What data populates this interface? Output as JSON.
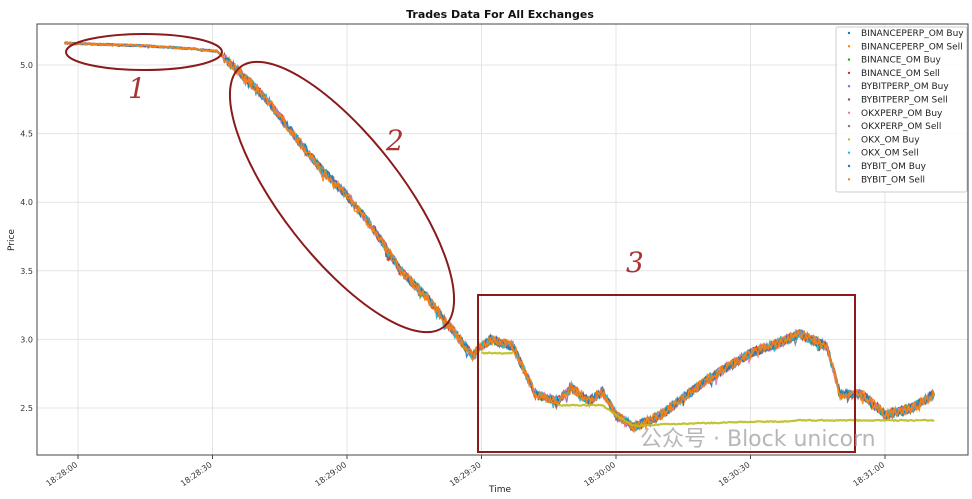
{
  "chart_data": {
    "type": "line",
    "title": "Trades Data For All Exchanges",
    "xlabel": "Time",
    "ylabel": "Price",
    "xlim": [
      "18:27:51",
      "18:31:18"
    ],
    "ylim": [
      2.16,
      5.31
    ],
    "grid": true,
    "legend_position": "top-right",
    "x_ticks": [
      "18:28:00",
      "18:28:30",
      "18:29:00",
      "18:29:30",
      "18:30:00",
      "18:30:30",
      "18:31:00"
    ],
    "y_ticks": [
      "2.5",
      "3.0",
      "3.5",
      "4.0",
      "4.5",
      "5.0"
    ],
    "x": [
      "18:27:57",
      "18:28:05",
      "18:28:15",
      "18:28:25",
      "18:28:31",
      "18:28:36",
      "18:28:42",
      "18:28:48",
      "18:28:54",
      "18:29:00",
      "18:29:06",
      "18:29:12",
      "18:29:18",
      "18:29:24",
      "18:29:28",
      "18:29:30",
      "18:29:32",
      "18:29:37",
      "18:29:42",
      "18:29:47",
      "18:29:50",
      "18:29:54",
      "18:29:57",
      "18:30:00",
      "18:30:04",
      "18:30:10",
      "18:30:20",
      "18:30:30",
      "18:30:36",
      "18:30:41",
      "18:30:47",
      "18:30:50",
      "18:30:55",
      "18:31:00",
      "18:31:06",
      "18:31:11"
    ],
    "series": [
      {
        "name": "BINANCEPERP_OM Buy",
        "color": "#1f77b4",
        "values": [
          5.16,
          5.15,
          5.14,
          5.12,
          5.1,
          4.95,
          4.75,
          4.5,
          4.25,
          4.05,
          3.8,
          3.5,
          3.3,
          3.05,
          2.88,
          2.95,
          3.0,
          2.95,
          2.6,
          2.55,
          2.65,
          2.55,
          2.62,
          2.45,
          2.36,
          2.45,
          2.7,
          2.9,
          2.97,
          3.04,
          2.95,
          2.6,
          2.6,
          2.45,
          2.5,
          2.6
        ]
      },
      {
        "name": "BINANCEPERP_OM Sell",
        "color": "#ff7f0e",
        "values": [
          5.16,
          5.15,
          5.14,
          5.12,
          5.1,
          4.95,
          4.75,
          4.5,
          4.25,
          4.05,
          3.8,
          3.5,
          3.3,
          3.05,
          2.88,
          2.95,
          3.0,
          2.95,
          2.6,
          2.55,
          2.65,
          2.55,
          2.62,
          2.45,
          2.36,
          2.45,
          2.7,
          2.9,
          2.97,
          3.04,
          2.95,
          2.6,
          2.6,
          2.45,
          2.5,
          2.6
        ]
      },
      {
        "name": "BINANCE_OM Buy",
        "color": "#2ca02c",
        "values": [
          5.16,
          5.15,
          5.14,
          5.12,
          5.1,
          4.95,
          4.75,
          4.5,
          4.25,
          4.05,
          3.8,
          3.5,
          3.3,
          3.05,
          2.88,
          2.95,
          3.0,
          2.95,
          2.6,
          2.55,
          2.65,
          2.55,
          2.62,
          2.45,
          2.36,
          2.45,
          2.7,
          2.9,
          2.97,
          3.04,
          2.95,
          2.6,
          2.6,
          2.45,
          2.5,
          2.6
        ]
      },
      {
        "name": "BINANCE_OM Sell",
        "color": "#d62728",
        "values": [
          5.16,
          5.15,
          5.14,
          5.12,
          5.1,
          4.95,
          4.75,
          4.5,
          4.25,
          4.05,
          3.8,
          3.5,
          3.3,
          3.05,
          2.88,
          2.95,
          3.0,
          2.95,
          2.6,
          2.55,
          2.65,
          2.55,
          2.62,
          2.45,
          2.36,
          2.45,
          2.7,
          2.9,
          2.97,
          3.04,
          2.95,
          2.6,
          2.6,
          2.45,
          2.5,
          2.6
        ]
      },
      {
        "name": "BYBITPERP_OM Buy",
        "color": "#9467bd",
        "values": [
          5.16,
          5.15,
          5.14,
          5.12,
          5.1,
          4.95,
          4.75,
          4.5,
          4.25,
          4.05,
          3.8,
          3.5,
          3.3,
          3.05,
          2.88,
          2.95,
          3.0,
          2.95,
          2.6,
          2.55,
          2.65,
          2.55,
          2.62,
          2.45,
          2.36,
          2.45,
          2.7,
          2.9,
          2.97,
          3.04,
          2.95,
          2.6,
          2.6,
          2.45,
          2.5,
          2.6
        ]
      },
      {
        "name": "BYBITPERP_OM Sell",
        "color": "#8c564b",
        "values": [
          5.16,
          5.15,
          5.14,
          5.12,
          5.1,
          4.95,
          4.75,
          4.5,
          4.25,
          4.05,
          3.8,
          3.5,
          3.3,
          3.05,
          2.88,
          2.95,
          3.0,
          2.95,
          2.6,
          2.55,
          2.65,
          2.55,
          2.62,
          2.45,
          2.36,
          2.45,
          2.7,
          2.9,
          2.97,
          3.04,
          2.95,
          2.6,
          2.6,
          2.45,
          2.5,
          2.6
        ]
      },
      {
        "name": "OKXPERP_OM Buy",
        "color": "#e377c2",
        "values": [
          5.16,
          5.15,
          5.14,
          5.12,
          5.1,
          4.95,
          4.75,
          4.5,
          4.25,
          4.05,
          3.8,
          3.5,
          3.3,
          3.05,
          2.88,
          2.95,
          3.0,
          2.95,
          2.6,
          2.55,
          2.65,
          2.55,
          2.62,
          2.45,
          2.36,
          2.45,
          2.7,
          2.9,
          2.97,
          3.04,
          2.95,
          2.6,
          2.6,
          2.45,
          2.5,
          2.6
        ]
      },
      {
        "name": "OKXPERP_OM Sell",
        "color": "#7f7f7f",
        "values": [
          5.16,
          5.15,
          5.14,
          5.12,
          5.1,
          4.95,
          4.75,
          4.5,
          4.25,
          4.05,
          3.8,
          3.5,
          3.3,
          3.05,
          2.88,
          2.95,
          3.0,
          2.95,
          2.6,
          2.55,
          2.65,
          2.55,
          2.62,
          2.45,
          2.36,
          2.45,
          2.7,
          2.9,
          2.97,
          3.04,
          2.95,
          2.6,
          2.6,
          2.45,
          2.5,
          2.6
        ]
      },
      {
        "name": "OKX_OM Buy",
        "color": "#bcbd22",
        "values": [
          null,
          null,
          null,
          null,
          null,
          null,
          null,
          null,
          null,
          null,
          null,
          null,
          null,
          null,
          null,
          2.9,
          2.9,
          2.9,
          null,
          2.52,
          2.52,
          2.52,
          2.52,
          2.45,
          2.37,
          2.38,
          2.39,
          2.4,
          2.4,
          2.41,
          2.41,
          2.41,
          2.41,
          2.41,
          2.41,
          2.41
        ]
      },
      {
        "name": "OKX_OM Sell",
        "color": "#17becf",
        "values": [
          5.16,
          5.15,
          5.14,
          5.12,
          5.1,
          4.95,
          4.75,
          4.5,
          4.25,
          4.05,
          3.8,
          3.5,
          3.3,
          3.05,
          2.88,
          2.95,
          3.0,
          2.95,
          2.6,
          2.55,
          2.65,
          2.55,
          2.62,
          2.45,
          2.36,
          2.45,
          2.7,
          2.9,
          2.97,
          3.04,
          2.95,
          2.6,
          2.6,
          2.45,
          2.5,
          2.6
        ]
      },
      {
        "name": "BYBIT_OM Buy",
        "color": "#1f77b4",
        "values": [
          5.16,
          5.15,
          5.14,
          5.12,
          5.1,
          4.95,
          4.75,
          4.5,
          4.25,
          4.05,
          3.8,
          3.5,
          3.3,
          3.05,
          2.88,
          2.95,
          3.0,
          2.95,
          2.6,
          2.55,
          2.65,
          2.55,
          2.62,
          2.45,
          2.36,
          2.45,
          2.7,
          2.9,
          2.97,
          3.04,
          2.95,
          2.6,
          2.6,
          2.45,
          2.5,
          2.6
        ]
      },
      {
        "name": "BYBIT_OM Sell",
        "color": "#ff7f0e",
        "values": [
          5.16,
          5.15,
          5.14,
          5.12,
          5.1,
          4.95,
          4.75,
          4.5,
          4.25,
          4.05,
          3.8,
          3.5,
          3.3,
          3.05,
          2.88,
          2.95,
          3.0,
          2.95,
          2.6,
          2.55,
          2.65,
          2.55,
          2.62,
          2.45,
          2.36,
          2.45,
          2.7,
          2.9,
          2.97,
          3.04,
          2.95,
          2.6,
          2.6,
          2.45,
          2.5,
          2.6
        ]
      }
    ],
    "annotations": [
      "1",
      "2",
      "3"
    ],
    "annotation_color": "#8b1a1a"
  },
  "watermark": "公众号 · Block unicorn"
}
